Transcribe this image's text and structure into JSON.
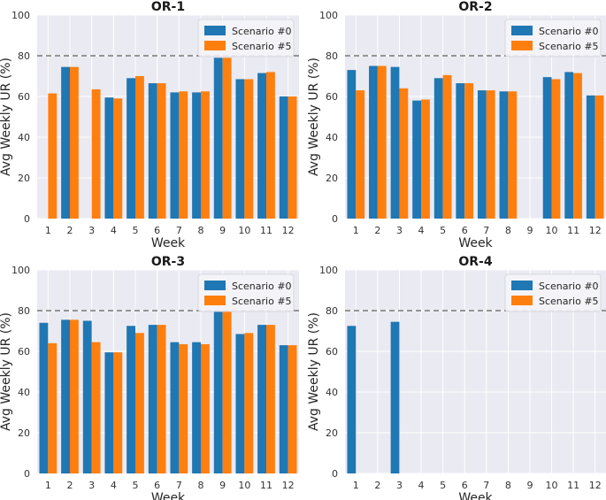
{
  "colors": {
    "scenario0": "#1f77b4",
    "scenario5": "#ff7f0e",
    "plot_background": "#eaeaf2",
    "grid": "#ffffff",
    "reference_line": "#777777"
  },
  "chart_data": [
    {
      "type": "bar",
      "title": "OR-1",
      "xlabel": "Week",
      "ylabel": "Avg Weekly UR (%)",
      "ylim": [
        0,
        100
      ],
      "yticks": [
        "0",
        "20",
        "40",
        "60",
        "80",
        "100"
      ],
      "reference_line_y": 80,
      "legend_position": "top-right",
      "categories": [
        "1",
        "2",
        "3",
        "4",
        "5",
        "6",
        "7",
        "8",
        "9",
        "10",
        "11",
        "12"
      ],
      "series": [
        {
          "name": "Scenario #0",
          "values": [
            null,
            74.5,
            null,
            59.5,
            69,
            66.5,
            62,
            62,
            79,
            68.5,
            71.5,
            60
          ]
        },
        {
          "name": "Scenario #5",
          "values": [
            61.5,
            74.5,
            63.5,
            59,
            70,
            66.5,
            62.5,
            62.5,
            79,
            68.5,
            72,
            60
          ]
        }
      ]
    },
    {
      "type": "bar",
      "title": "OR-2",
      "xlabel": "Week",
      "ylabel": "Avg Weekly UR (%)",
      "ylim": [
        0,
        100
      ],
      "yticks": [
        "0",
        "20",
        "40",
        "60",
        "80",
        "100"
      ],
      "reference_line_y": 80,
      "legend_position": "top-right",
      "categories": [
        "1",
        "2",
        "3",
        "4",
        "5",
        "6",
        "7",
        "8",
        "9",
        "10",
        "11",
        "12"
      ],
      "series": [
        {
          "name": "Scenario #0",
          "values": [
            73,
            75,
            74.5,
            58,
            69,
            66.5,
            63,
            62.5,
            null,
            69.5,
            72,
            60.5
          ]
        },
        {
          "name": "Scenario #5",
          "values": [
            63,
            75,
            64,
            58.5,
            70.5,
            66.5,
            63,
            62.5,
            null,
            68.5,
            71.5,
            60.5
          ]
        }
      ]
    },
    {
      "type": "bar",
      "title": "OR-3",
      "xlabel": "Week",
      "ylabel": "Avg Weekly UR (%)",
      "ylim": [
        0,
        100
      ],
      "yticks": [
        "0",
        "20",
        "40",
        "60",
        "80",
        "100"
      ],
      "reference_line_y": 80,
      "legend_position": "top-right",
      "categories": [
        "1",
        "2",
        "3",
        "4",
        "5",
        "6",
        "7",
        "8",
        "9",
        "10",
        "11",
        "12"
      ],
      "series": [
        {
          "name": "Scenario #0",
          "values": [
            74,
            75.5,
            75,
            59.5,
            72.5,
            73,
            64.5,
            64.5,
            79.5,
            68.5,
            73,
            63
          ]
        },
        {
          "name": "Scenario #5",
          "values": [
            64,
            75.5,
            64.5,
            59.5,
            69,
            73,
            63.5,
            63.5,
            79.5,
            69,
            73,
            63
          ]
        }
      ]
    },
    {
      "type": "bar",
      "title": "OR-4",
      "xlabel": "Week",
      "ylabel": "Avg Weekly UR (%)",
      "ylim": [
        0,
        100
      ],
      "yticks": [
        "0",
        "20",
        "40",
        "60",
        "80",
        "100"
      ],
      "reference_line_y": 80,
      "legend_position": "top-right",
      "categories": [
        "1",
        "2",
        "3",
        "4",
        "5",
        "6",
        "7",
        "8",
        "9",
        "10",
        "11",
        "12"
      ],
      "series": [
        {
          "name": "Scenario #0",
          "values": [
            72.5,
            null,
            74.5,
            null,
            null,
            null,
            null,
            null,
            null,
            null,
            null,
            null
          ]
        },
        {
          "name": "Scenario #5",
          "values": [
            null,
            null,
            null,
            null,
            null,
            null,
            null,
            null,
            null,
            null,
            null,
            null
          ]
        }
      ]
    }
  ]
}
